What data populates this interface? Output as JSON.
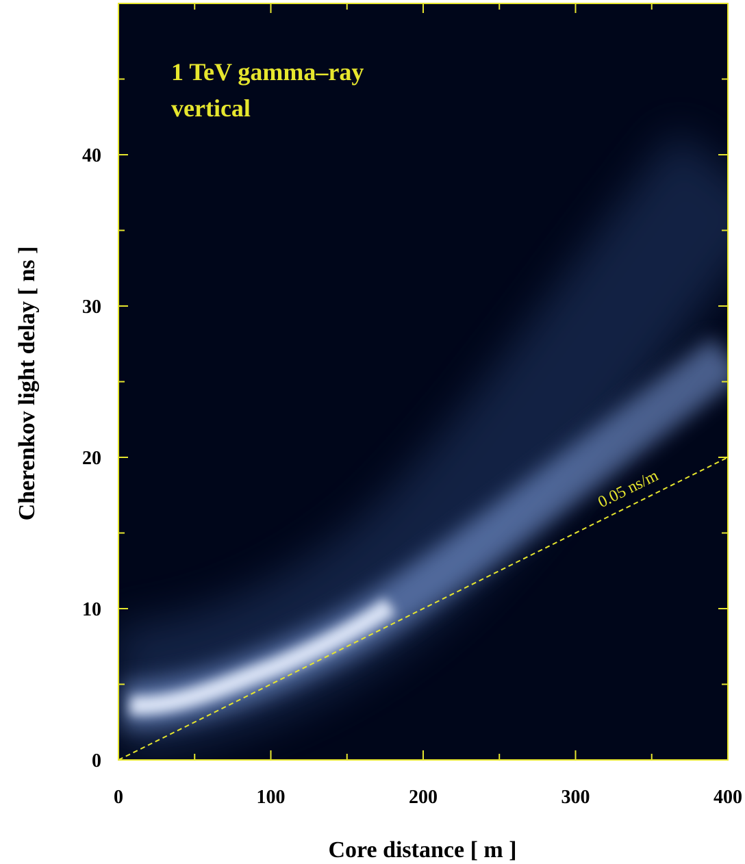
{
  "chart_data": {
    "type": "density",
    "annotation": [
      "1 TeV gamma–ray",
      "vertical"
    ],
    "xlabel": "Core distance  [ m ]",
    "ylabel": "Cherenkov light delay  [ ns ]",
    "xlim": [
      0,
      400
    ],
    "ylim": [
      0,
      50
    ],
    "xticks": [
      0,
      100,
      200,
      300,
      400
    ],
    "yticks": [
      0,
      10,
      20,
      30,
      40
    ],
    "frame_color": "#e6e62e",
    "lines": [
      {
        "label": "0.05 ns/m",
        "color": "#e6e62e",
        "x": [
          0,
          400
        ],
        "y": [
          0,
          20
        ]
      }
    ]
  }
}
